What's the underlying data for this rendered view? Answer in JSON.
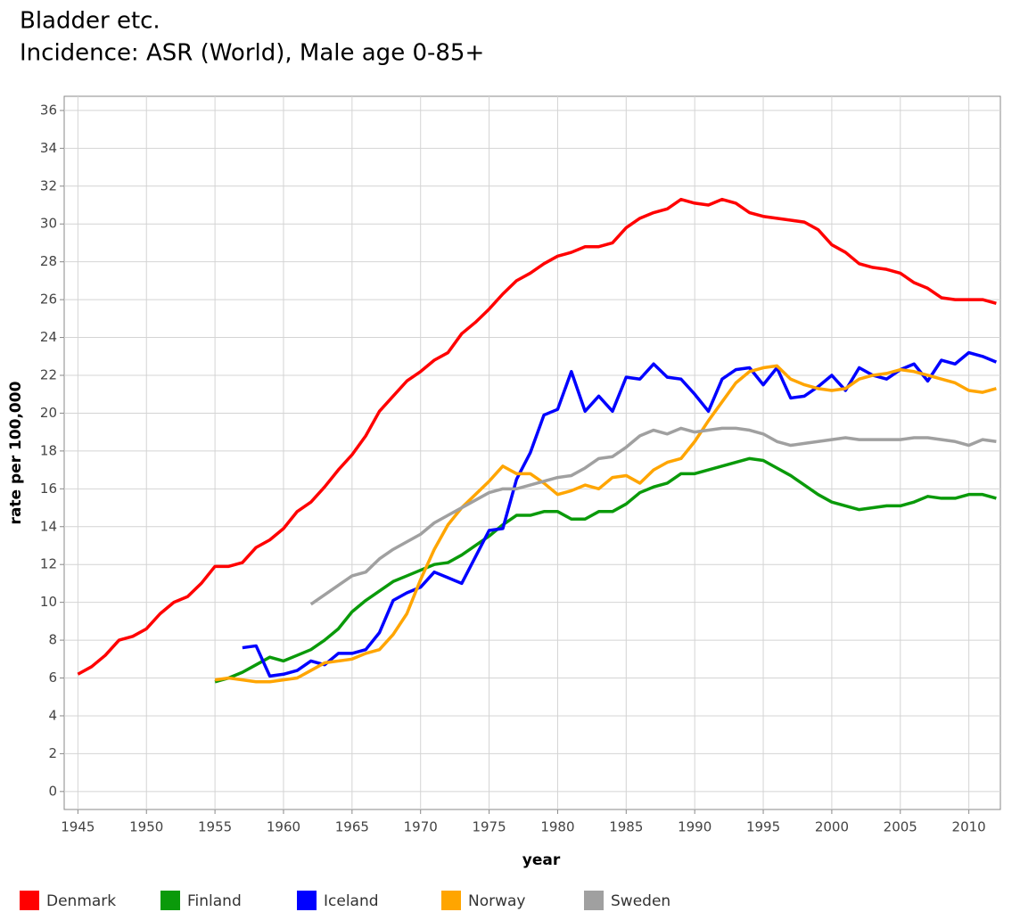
{
  "chart_data": {
    "type": "line",
    "title": "Bladder etc.",
    "subtitle": "Incidence: ASR (World), Male age 0-85+",
    "x_label": "year",
    "y_label": "rate per 100,000",
    "x": [
      1945,
      1946,
      1947,
      1948,
      1949,
      1950,
      1951,
      1952,
      1953,
      1954,
      1955,
      1956,
      1957,
      1958,
      1959,
      1960,
      1961,
      1962,
      1963,
      1964,
      1965,
      1966,
      1967,
      1968,
      1969,
      1970,
      1971,
      1972,
      1973,
      1974,
      1975,
      1976,
      1977,
      1978,
      1979,
      1980,
      1981,
      1982,
      1983,
      1984,
      1985,
      1986,
      1987,
      1988,
      1989,
      1990,
      1991,
      1992,
      1993,
      1994,
      1995,
      1996,
      1997,
      1998,
      1999,
      2000,
      2001,
      2002,
      2003,
      2004,
      2005,
      2006,
      2007,
      2008,
      2009,
      2010,
      2011,
      2012
    ],
    "series": [
      {
        "name": "Denmark",
        "color": "#ff0000",
        "values": [
          6.2,
          6.6,
          7.2,
          8.0,
          8.2,
          8.6,
          9.4,
          10.0,
          10.3,
          11.0,
          11.9,
          11.9,
          12.1,
          12.9,
          13.3,
          13.9,
          14.8,
          15.3,
          16.1,
          17.0,
          17.8,
          18.8,
          20.1,
          20.9,
          21.7,
          22.2,
          22.8,
          23.2,
          24.2,
          24.8,
          25.5,
          26.3,
          27.0,
          27.4,
          27.9,
          28.3,
          28.5,
          28.8,
          28.8,
          29.0,
          29.8,
          30.3,
          30.6,
          30.8,
          31.3,
          31.1,
          31.0,
          31.3,
          31.1,
          30.6,
          30.4,
          30.3,
          30.2,
          30.1,
          29.7,
          28.9,
          28.5,
          27.9,
          27.7,
          27.6,
          27.4,
          26.9,
          26.6,
          26.1,
          26.0,
          26.0,
          26.0,
          25.8
        ]
      },
      {
        "name": "Finland",
        "color": "#0a9a0a",
        "values": [
          null,
          null,
          null,
          null,
          null,
          null,
          null,
          null,
          null,
          null,
          5.8,
          6.0,
          6.3,
          6.7,
          7.1,
          6.9,
          7.2,
          7.5,
          8.0,
          8.6,
          9.5,
          10.1,
          10.6,
          11.1,
          11.4,
          11.7,
          12.0,
          12.1,
          12.5,
          13.0,
          13.5,
          14.1,
          14.6,
          14.6,
          14.8,
          14.8,
          14.4,
          14.4,
          14.8,
          14.8,
          15.2,
          15.8,
          16.1,
          16.3,
          16.8,
          16.8,
          17.0,
          17.2,
          17.4,
          17.6,
          17.5,
          17.1,
          16.7,
          16.2,
          15.7,
          15.3,
          15.1,
          14.9,
          15.0,
          15.1,
          15.1,
          15.3,
          15.6,
          15.5,
          15.5,
          15.7,
          15.7,
          15.5
        ]
      },
      {
        "name": "Iceland",
        "color": "#0000ff",
        "values": [
          null,
          null,
          null,
          null,
          null,
          null,
          null,
          null,
          null,
          null,
          null,
          null,
          7.6,
          7.7,
          6.1,
          6.2,
          6.4,
          6.9,
          6.7,
          7.3,
          7.3,
          7.5,
          8.4,
          10.1,
          10.5,
          10.8,
          11.6,
          11.3,
          11.0,
          12.4,
          13.8,
          13.9,
          16.5,
          17.9,
          19.9,
          20.2,
          22.2,
          20.1,
          20.9,
          20.1,
          21.9,
          21.8,
          22.6,
          21.9,
          21.8,
          21.0,
          20.1,
          21.8,
          22.3,
          22.4,
          21.5,
          22.4,
          20.8,
          20.9,
          21.4,
          22.0,
          21.2,
          22.4,
          22.0,
          21.8,
          22.3,
          22.6,
          21.7,
          22.8,
          22.6,
          23.2,
          23.0,
          22.7
        ]
      },
      {
        "name": "Norway",
        "color": "#ffa500",
        "values": [
          null,
          null,
          null,
          null,
          null,
          null,
          null,
          null,
          null,
          null,
          5.9,
          6.0,
          5.9,
          5.8,
          5.8,
          5.9,
          6.0,
          6.4,
          6.8,
          6.9,
          7.0,
          7.3,
          7.5,
          8.3,
          9.4,
          11.2,
          12.8,
          14.1,
          15.0,
          15.7,
          16.4,
          17.2,
          16.8,
          16.8,
          16.3,
          15.7,
          15.9,
          16.2,
          16.0,
          16.6,
          16.7,
          16.3,
          17.0,
          17.4,
          17.6,
          18.5,
          19.6,
          20.6,
          21.6,
          22.2,
          22.4,
          22.5,
          21.8,
          21.5,
          21.3,
          21.2,
          21.3,
          21.8,
          22.0,
          22.1,
          22.3,
          22.2,
          22.0,
          21.8,
          21.6,
          21.2,
          21.1,
          21.3
        ]
      },
      {
        "name": "Sweden",
        "color": "#a0a0a0",
        "values": [
          null,
          null,
          null,
          null,
          null,
          null,
          null,
          null,
          null,
          null,
          null,
          null,
          null,
          null,
          null,
          null,
          null,
          9.9,
          10.4,
          10.9,
          11.4,
          11.6,
          12.3,
          12.8,
          13.2,
          13.6,
          14.2,
          14.6,
          15.0,
          15.4,
          15.8,
          16.0,
          16.0,
          16.2,
          16.4,
          16.6,
          16.7,
          17.1,
          17.6,
          17.7,
          18.2,
          18.8,
          19.1,
          18.9,
          19.2,
          19.0,
          19.1,
          19.2,
          19.2,
          19.1,
          18.9,
          18.5,
          18.3,
          18.4,
          18.5,
          18.6,
          18.7,
          18.6,
          18.6,
          18.6,
          18.6,
          18.7,
          18.7,
          18.6,
          18.5,
          18.3,
          18.6,
          18.5
        ]
      }
    ],
    "xlim": [
      1944,
      2012.3
    ],
    "xticks": [
      1945,
      1950,
      1955,
      1960,
      1965,
      1970,
      1975,
      1980,
      1985,
      1990,
      1995,
      2000,
      2005,
      2010
    ],
    "ylim": [
      -0.95,
      36.75
    ],
    "yticks": [
      0,
      2,
      4,
      6,
      8,
      10,
      12,
      14,
      16,
      18,
      20,
      22,
      24,
      26,
      28,
      30,
      32,
      34,
      36
    ],
    "grid": true
  }
}
